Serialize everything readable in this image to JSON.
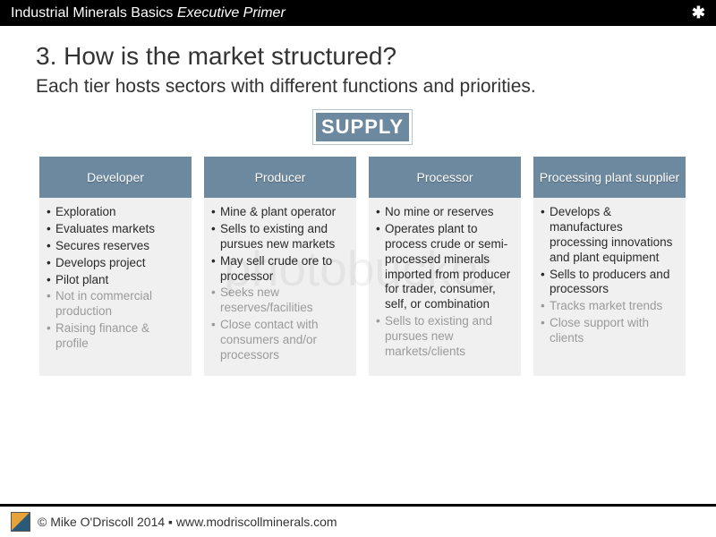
{
  "header": {
    "title_main": "Industrial Minerals Basics",
    "title_sub": "Executive Primer",
    "icon_glyph": "✱"
  },
  "heading": "3. How is the market structured?",
  "subheading": "Each tier hosts sectors with different functions and priorities.",
  "supply_label": "SUPPLY",
  "columns": [
    {
      "title": "Developer",
      "items": [
        {
          "text": "Exploration",
          "faded": false
        },
        {
          "text": "Evaluates markets",
          "faded": false
        },
        {
          "text": "Secures reserves",
          "faded": false
        },
        {
          "text": "Develops project",
          "faded": false
        },
        {
          "text": "Pilot plant",
          "faded": false
        },
        {
          "text": "Not in commercial production",
          "faded": true
        },
        {
          "text": "Raising finance & profile",
          "faded": true
        }
      ]
    },
    {
      "title": "Producer",
      "items": [
        {
          "text": "Mine & plant operator",
          "faded": false
        },
        {
          "text": "Sells to existing and pursues new markets",
          "faded": false
        },
        {
          "text": "May sell crude ore to processor",
          "faded": false
        },
        {
          "text": "Seeks new reserves/facilities",
          "faded": true
        },
        {
          "text": "Close contact with consumers and/or processors",
          "faded": true
        }
      ]
    },
    {
      "title": "Processor",
      "items": [
        {
          "text": "No mine or reserves",
          "faded": false
        },
        {
          "text": "Operates plant to process crude or semi-processed minerals imported from producer for trader, consumer, self, or combination",
          "faded": false
        },
        {
          "text": "Sells to existing and pursues new markets/clients",
          "faded": true
        }
      ]
    },
    {
      "title": "Processing plant supplier",
      "items": [
        {
          "text": "Develops & manufactures processing innovations and plant equipment",
          "faded": false
        },
        {
          "text": "Sells to producers and processors",
          "faded": false
        },
        {
          "text": "Tracks market trends",
          "faded": true
        },
        {
          "text": "Close support with clients",
          "faded": true
        }
      ]
    }
  ],
  "footer": {
    "text": "© Mike O'Driscoll 2014 ▪ www.modriscollminerals.com"
  },
  "styling": {
    "header_bg": "#6d89a0",
    "column_bg": "#f1f0f0",
    "faded_text": "#9a9a9a",
    "body_text": "#2a2a2a",
    "page_bg": "#ffffff",
    "topbar_bg": "#000000",
    "heading_fontsize": 28,
    "subheading_fontsize": 21,
    "body_fontsize": 13.5,
    "supply_fontsize": 22
  }
}
